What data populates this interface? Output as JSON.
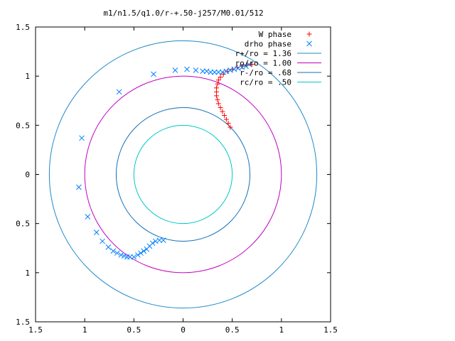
{
  "chart_data": {
    "type": "scatter",
    "title": "m1/n1.5/q1.0/r-+.50-j257/M0.01/512",
    "xlabel": "",
    "ylabel": "",
    "xlim": [
      -1.5,
      1.5
    ],
    "ylim": [
      -1.5,
      1.5
    ],
    "x_ticks": [
      -1.5,
      -1,
      -0.5,
      0,
      0.5,
      1,
      1.5
    ],
    "y_ticks": [
      -1.5,
      -1,
      -0.5,
      0,
      0.5,
      1,
      1.5
    ],
    "x_tick_labels": [
      "1.5",
      "1",
      "0.5",
      "0",
      "0.5",
      "1",
      "1.5"
    ],
    "y_tick_labels": [
      "1.5",
      "1",
      "0.5",
      "0",
      "0.5",
      "1",
      "1.5"
    ],
    "grid": false,
    "legend_position": "top-right",
    "legend": [
      {
        "label": "W phase",
        "type": "points",
        "marker": "+",
        "color": "#ff0000"
      },
      {
        "label": "drho phase",
        "type": "points",
        "marker": "x",
        "color": "#0080ff"
      },
      {
        "label": "r+/ro = 1.36",
        "type": "line",
        "color": "#1e88c8"
      },
      {
        "label": "ro/ro = 1.00",
        "type": "line",
        "color": "#c000c0"
      },
      {
        "label": "r-/ro = .68",
        "type": "line",
        "color": "#1070b8"
      },
      {
        "label": "rc/ro = .50",
        "type": "line",
        "color": "#00c8c8"
      }
    ],
    "circles": [
      {
        "r": 1.36,
        "color": "#1e88c8"
      },
      {
        "r": 1.0,
        "color": "#c000c0"
      },
      {
        "r": 0.68,
        "color": "#1070b8"
      },
      {
        "r": 0.5,
        "color": "#00c8c8"
      }
    ],
    "series": [
      {
        "name": "W phase",
        "marker": "+",
        "color": "#ff0000",
        "points": [
          [
            0.48,
            0.48
          ],
          [
            0.46,
            0.52
          ],
          [
            0.44,
            0.56
          ],
          [
            0.42,
            0.6
          ],
          [
            0.4,
            0.64
          ],
          [
            0.38,
            0.68
          ],
          [
            0.36,
            0.72
          ],
          [
            0.35,
            0.76
          ],
          [
            0.34,
            0.8
          ],
          [
            0.34,
            0.84
          ],
          [
            0.34,
            0.88
          ],
          [
            0.35,
            0.92
          ],
          [
            0.36,
            0.96
          ],
          [
            0.38,
            0.99
          ],
          [
            0.41,
            1.02
          ],
          [
            0.45,
            1.05
          ],
          [
            0.5,
            1.07
          ],
          [
            0.55,
            1.09
          ],
          [
            0.6,
            1.1
          ],
          [
            0.65,
            1.11
          ],
          [
            0.7,
            1.12
          ]
        ]
      },
      {
        "name": "drho phase",
        "marker": "x",
        "color": "#0080ff",
        "points": [
          [
            -1.03,
            0.37
          ],
          [
            -0.65,
            0.84
          ],
          [
            -0.3,
            1.02
          ],
          [
            -0.08,
            1.06
          ],
          [
            0.04,
            1.07
          ],
          [
            0.13,
            1.06
          ],
          [
            0.2,
            1.05
          ],
          [
            0.24,
            1.05
          ],
          [
            0.28,
            1.04
          ],
          [
            0.32,
            1.04
          ],
          [
            0.36,
            1.04
          ],
          [
            0.4,
            1.04
          ],
          [
            0.44,
            1.05
          ],
          [
            0.48,
            1.06
          ],
          [
            0.52,
            1.07
          ],
          [
            0.56,
            1.08
          ],
          [
            0.6,
            1.09
          ],
          [
            0.64,
            1.1
          ],
          [
            0.67,
            1.12
          ],
          [
            -1.06,
            -0.13
          ],
          [
            -0.97,
            -0.43
          ],
          [
            -0.88,
            -0.59
          ],
          [
            -0.82,
            -0.68
          ],
          [
            -0.76,
            -0.74
          ],
          [
            -0.71,
            -0.78
          ],
          [
            -0.67,
            -0.8
          ],
          [
            -0.63,
            -0.82
          ],
          [
            -0.6,
            -0.83
          ],
          [
            -0.57,
            -0.84
          ],
          [
            -0.54,
            -0.84
          ],
          [
            -0.5,
            -0.84
          ],
          [
            -0.46,
            -0.82
          ],
          [
            -0.43,
            -0.8
          ],
          [
            -0.4,
            -0.78
          ],
          [
            -0.37,
            -0.76
          ],
          [
            -0.34,
            -0.73
          ],
          [
            -0.31,
            -0.7
          ],
          [
            -0.28,
            -0.68
          ],
          [
            -0.24,
            -0.67
          ],
          [
            -0.2,
            -0.67
          ]
        ]
      }
    ]
  }
}
